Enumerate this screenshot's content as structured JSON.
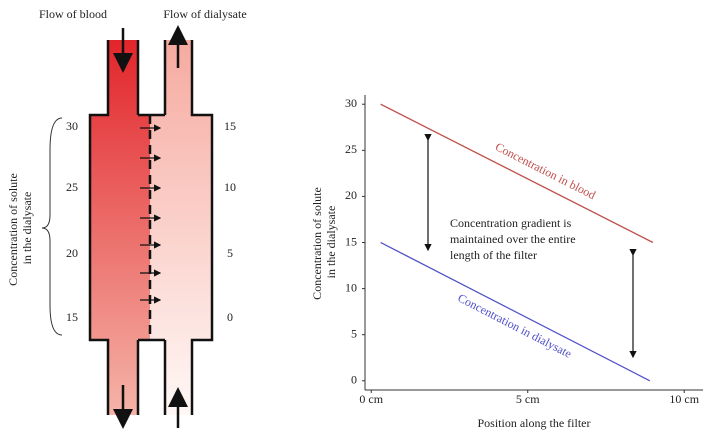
{
  "diagram": {
    "flow_labels": [
      "Flow of blood",
      "Flow of dialysate"
    ],
    "side_label": [
      "Concentration of solute",
      "in the dialysate"
    ],
    "blood_scale": [
      30,
      25,
      20,
      15
    ],
    "dialysate_scale": [
      15,
      10,
      5,
      0
    ]
  },
  "chart_data": {
    "type": "line",
    "y_label": [
      "Concentration of solute",
      "in the dialysate"
    ],
    "x_label": "Position along the filter",
    "annotation": [
      "Concentration gradient is",
      "maintained over the entire",
      "length of the filter"
    ],
    "xlim": [
      -0.2,
      10.6
    ],
    "ylim": [
      -1,
      31
    ],
    "xticks": [
      {
        "value": 0,
        "label": "0 cm"
      },
      {
        "value": 5,
        "label": "5 cm"
      },
      {
        "value": 10,
        "label": "10 cm"
      }
    ],
    "yticks": [
      0,
      5,
      10,
      15,
      20,
      25,
      30
    ],
    "series": [
      {
        "name": "Concentration in blood",
        "color": "#c0504d",
        "x": [
          0.3,
          9.0
        ],
        "values": [
          30,
          15
        ]
      },
      {
        "name": "Concentration in dialysate",
        "color": "#5050c8",
        "x": [
          0.3,
          8.9
        ],
        "values": [
          15,
          0
        ]
      }
    ]
  }
}
